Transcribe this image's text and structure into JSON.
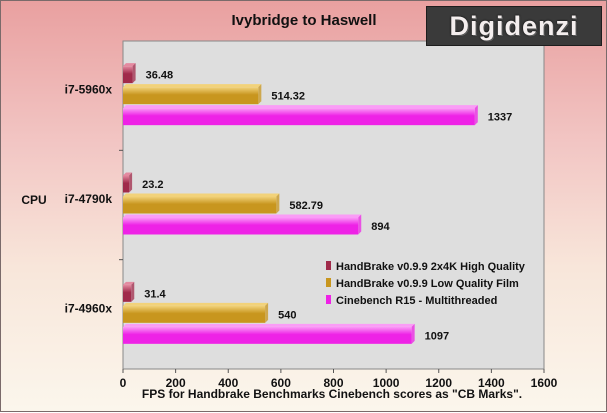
{
  "colors": {
    "series": [
      "#a02a4a",
      "#c8961e",
      "#ee22e6"
    ],
    "series_light": [
      "#e48aa0",
      "#f2d27a",
      "#fa9cf6"
    ]
  },
  "logo": {
    "text": "Digidenzi"
  },
  "chart_data": {
    "type": "bar",
    "orientation": "horizontal",
    "title": "Ivybridge to Haswell",
    "ylabel": "CPU",
    "xlabel": "FPS for Handbrake Benchmarks Cinebench scores as \"CB Marks\".",
    "xlim": [
      0,
      1600
    ],
    "xticks": [
      0,
      200,
      400,
      600,
      800,
      1000,
      1200,
      1400,
      1600
    ],
    "grid": false,
    "legend_position": "lower-right",
    "categories": [
      "i7-5960x",
      "i7-4790k",
      "i7-4960x"
    ],
    "series": [
      {
        "name": "HandBrake v0.9.9 2x4K High Quality",
        "values": [
          36.48,
          23.2,
          31.4
        ]
      },
      {
        "name": "HandBrake v0.9.9 Low Quality Film",
        "values": [
          514.32,
          582.79,
          540
        ]
      },
      {
        "name": "Cinebench R15 - Multithreaded",
        "values": [
          1337,
          894,
          1097
        ]
      }
    ]
  }
}
